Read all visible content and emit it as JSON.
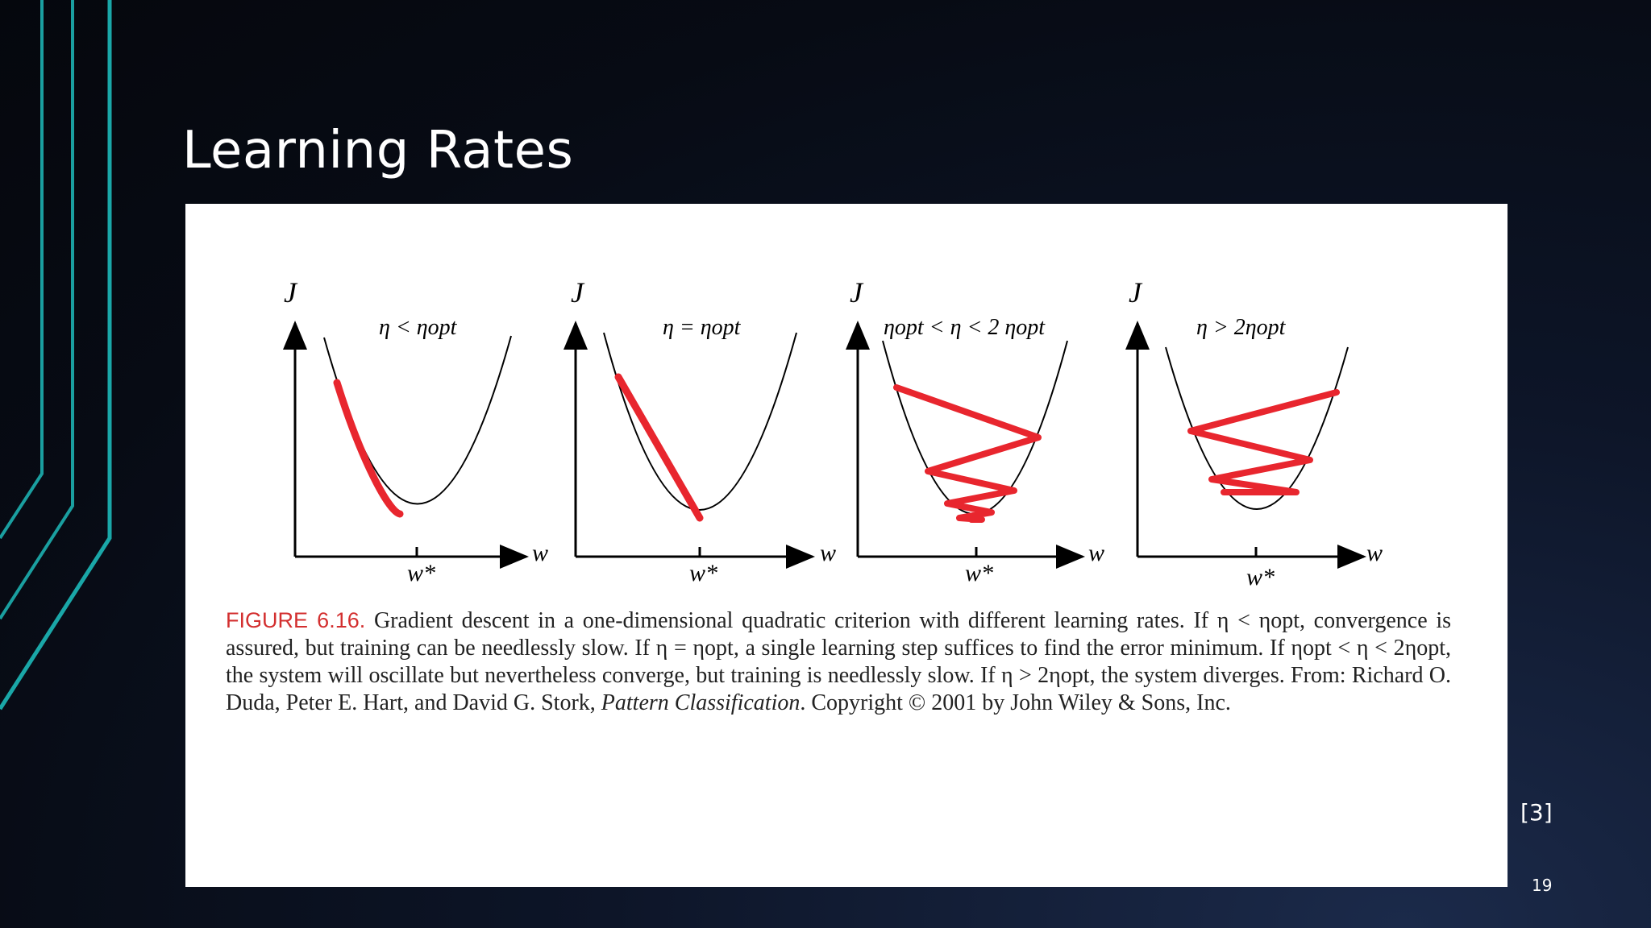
{
  "slide": {
    "title": "Learning Rates",
    "reference": "[3]",
    "page_number": "19"
  },
  "figure": {
    "axis_y": "J",
    "axis_x": "w",
    "minimum_label": "w*",
    "panels": [
      {
        "label": "η < ηopt",
        "behavior": "slow convergence"
      },
      {
        "label": "η = ηopt",
        "behavior": "single step"
      },
      {
        "label": "ηopt < η < 2 ηopt",
        "behavior": "oscillating convergence"
      },
      {
        "label": "η > 2ηopt",
        "behavior": "divergence"
      }
    ],
    "caption_label": "FIGURE 6.16.",
    "caption_line1": "Gradient descent in a one-dimensional quadratic criterion with different learning rates. If η < ηopt, convergence is assured, but training can be needlessly slow. If η = ηopt, a single learning step suffices to find the error minimum. If ηopt < η < 2ηopt, the system will oscillate but nevertheless converge, but training is needlessly slow. If η > 2ηopt, the system diverges. From: Richard O. Duda, Peter E. Hart, and David G. Stork,",
    "caption_book": "Pattern Classification",
    "caption_end": ". Copyright © 2001 by John Wiley & Sons, Inc."
  },
  "colors": {
    "path": "#e8262e",
    "caption_label": "#d32f2f",
    "accent_lines": "#1aa7a8"
  }
}
